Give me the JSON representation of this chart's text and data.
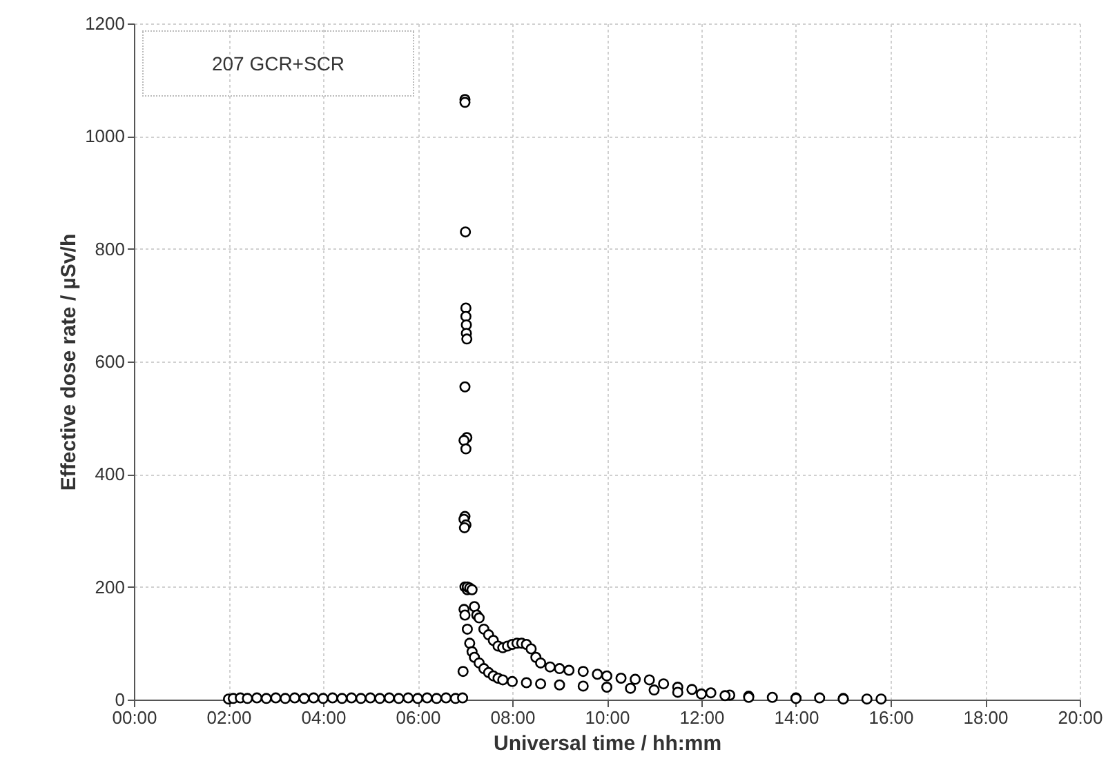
{
  "chart_data": {
    "type": "scatter",
    "xlabel": "Universal time / hh:mm",
    "ylabel": "Effective dose rate / µSv/h",
    "annotations": [
      "207 GCR+SCR"
    ],
    "xlim": [
      0,
      20
    ],
    "ylim": [
      0,
      1200
    ],
    "xticks": [
      {
        "value": 0,
        "label": "00:00"
      },
      {
        "value": 2,
        "label": "02:00"
      },
      {
        "value": 4,
        "label": "04:00"
      },
      {
        "value": 6,
        "label": "06:00"
      },
      {
        "value": 8,
        "label": "08:00"
      },
      {
        "value": 10,
        "label": "10:00"
      },
      {
        "value": 12,
        "label": "12:00"
      },
      {
        "value": 14,
        "label": "14:00"
      },
      {
        "value": 16,
        "label": "16:00"
      },
      {
        "value": 18,
        "label": "18:00"
      },
      {
        "value": 20,
        "label": "20:00"
      }
    ],
    "yticks": [
      0,
      200,
      400,
      600,
      800,
      1000,
      1200
    ],
    "grid": true,
    "marker": "circle",
    "series": [
      {
        "color": "#000000",
        "x": [
          2.0,
          2.1,
          2.25,
          2.4,
          2.6,
          2.8,
          3.0,
          3.2,
          3.4,
          3.6,
          3.8,
          4.0,
          4.2,
          4.4,
          4.6,
          4.8,
          5.0,
          5.2,
          5.4,
          5.6,
          5.8,
          6.0,
          6.2,
          6.4,
          6.6,
          6.8,
          6.95,
          7.0,
          7.0,
          7.01,
          7.02,
          7.02,
          7.03,
          7.03,
          7.04,
          7.0,
          7.04,
          6.98,
          7.02,
          7.0,
          6.98,
          7.02,
          6.99,
          7.0,
          7.05,
          6.98,
          6.96,
          7.05,
          7.1,
          7.15,
          7.2,
          7.25,
          7.3,
          7.4,
          7.5,
          7.6,
          7.7,
          7.8,
          7.9,
          8.0,
          8.1,
          8.2,
          8.3,
          8.4,
          8.5,
          8.6,
          8.8,
          9.0,
          9.2,
          9.5,
          9.8,
          10.0,
          10.3,
          10.6,
          10.9,
          11.2,
          11.5,
          11.8,
          12.2,
          12.6,
          13.0,
          13.5,
          14.0,
          14.5,
          15.0,
          15.5,
          15.8,
          7.0,
          7.05,
          7.1,
          7.15,
          7.2,
          7.3,
          7.4,
          7.5,
          7.6,
          7.7,
          7.8,
          8.0,
          8.3,
          8.6,
          9.0,
          9.5,
          10.0,
          10.5,
          11.0,
          11.5,
          12.0,
          12.5,
          13.0,
          14.0,
          15.0
        ],
        "values": [
          1,
          2,
          3,
          2,
          3,
          2,
          3,
          2,
          3,
          2,
          3,
          2,
          3,
          2,
          3,
          2,
          3,
          2,
          3,
          2,
          3,
          2,
          3,
          2,
          3,
          2,
          3,
          1065,
          1060,
          830,
          695,
          680,
          665,
          650,
          640,
          555,
          465,
          460,
          445,
          325,
          320,
          310,
          305,
          200,
          195,
          160,
          50,
          200,
          198,
          195,
          165,
          150,
          145,
          125,
          115,
          105,
          95,
          92,
          95,
          98,
          100,
          100,
          98,
          90,
          75,
          65,
          58,
          55,
          52,
          50,
          45,
          42,
          38,
          36,
          35,
          28,
          22,
          18,
          12,
          8,
          6,
          4,
          3,
          3,
          2,
          1,
          1,
          150,
          125,
          100,
          85,
          75,
          65,
          55,
          48,
          42,
          38,
          35,
          32,
          30,
          28,
          26,
          24,
          22,
          20,
          17,
          13,
          10,
          7,
          4,
          2,
          1
        ]
      }
    ]
  }
}
